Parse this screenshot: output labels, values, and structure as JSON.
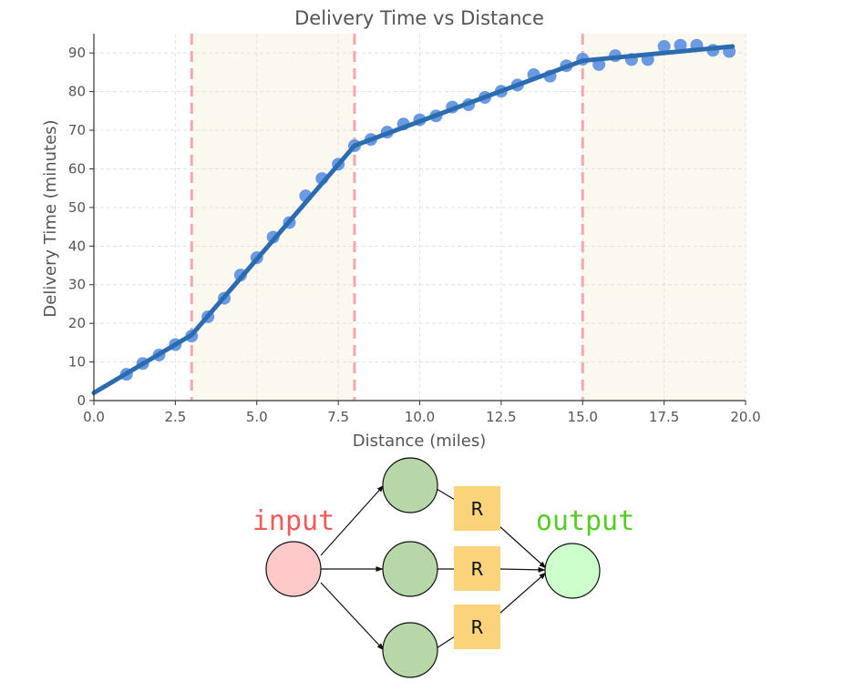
{
  "chart_data": {
    "type": "scatter",
    "title": "Delivery Time vs Distance",
    "xlabel": "Distance (miles)",
    "ylabel": "Delivery Time (minutes)",
    "xlim": [
      0,
      20
    ],
    "ylim": [
      0,
      95
    ],
    "xticks": [
      "0.0",
      "2.5",
      "5.0",
      "7.5",
      "10.0",
      "12.5",
      "15.0",
      "17.5",
      "20.0"
    ],
    "xtick_values": [
      0,
      2.5,
      5,
      7.5,
      10,
      12.5,
      15,
      17.5,
      20
    ],
    "yticks": [
      "0",
      "10",
      "20",
      "30",
      "40",
      "50",
      "60",
      "70",
      "80",
      "90"
    ],
    "ytick_values": [
      0,
      10,
      20,
      30,
      40,
      50,
      60,
      70,
      80,
      90
    ],
    "grid": true,
    "breakpoints": [
      3,
      8,
      15
    ],
    "shaded_regions": [
      [
        3,
        8
      ],
      [
        15,
        20
      ]
    ],
    "points": {
      "x": [
        1.0,
        1.5,
        2.0,
        2.5,
        3.0,
        3.5,
        4.0,
        4.5,
        5.0,
        5.5,
        6.0,
        6.5,
        7.0,
        7.5,
        8.0,
        8.5,
        9.0,
        9.5,
        10.0,
        10.5,
        11.0,
        11.5,
        12.0,
        12.5,
        13.0,
        13.5,
        14.0,
        14.5,
        15.0,
        15.5,
        16.0,
        16.5,
        17.0,
        17.5,
        18.0,
        18.5,
        19.0,
        19.5
      ],
      "y": [
        6.8,
        9.6,
        11.8,
        14.5,
        16.7,
        21.7,
        26.5,
        32.5,
        37.0,
        42.3,
        46.1,
        53.0,
        57.5,
        61.2,
        66.0,
        67.6,
        69.5,
        71.6,
        72.7,
        73.7,
        76.0,
        76.6,
        78.5,
        80.1,
        81.7,
        84.4,
        84.0,
        86.7,
        88.4,
        87.0,
        89.3,
        88.3,
        88.3,
        91.7,
        92.0,
        92.0,
        90.7,
        90.4
      ]
    },
    "fit_line": {
      "x": [
        0,
        3,
        8,
        15,
        19.6
      ],
      "y": [
        2,
        17,
        66,
        88,
        91.7
      ]
    },
    "colors": {
      "points": "#5b8fe0",
      "fit_line": "#2b6cb0",
      "breakpoint": "#f4a7ad",
      "shading": "#fbf8f0",
      "grid": "#e3e3e3",
      "axis": "#333333"
    }
  },
  "diagram": {
    "input_label": "input",
    "output_label": "output",
    "r_labels": [
      "R",
      "R",
      "R"
    ],
    "colors": {
      "input_fill": "#ffc9c9",
      "hidden_fill": "#b7d7a8",
      "output_fill": "#ccffcc",
      "r_box_fill": "#fbd37a",
      "input_text": "#f25a5a",
      "output_text": "#55cc22"
    }
  }
}
